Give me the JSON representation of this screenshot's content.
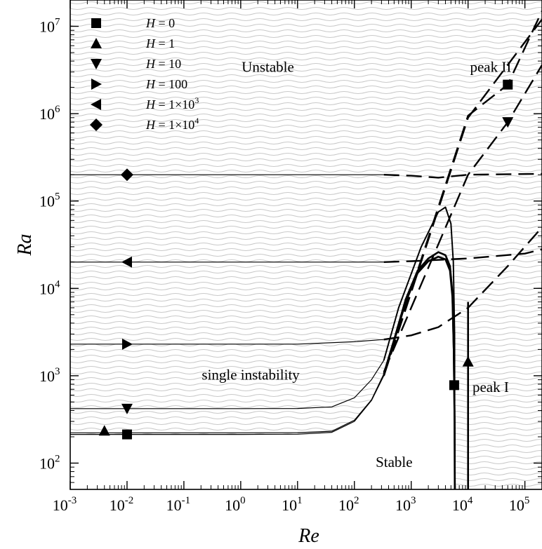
{
  "chart_data": {
    "type": "line",
    "x_scale": "log",
    "y_scale": "log",
    "xlabel": "Re",
    "ylabel": "Ra",
    "xlim": [
      0.001,
      200000
    ],
    "ylim": [
      50,
      20000000
    ],
    "x_ticks": [
      {
        "value": 0.001,
        "mant": "10",
        "exp": "-3"
      },
      {
        "value": 0.01,
        "mant": "10",
        "exp": "-2"
      },
      {
        "value": 0.1,
        "mant": "10",
        "exp": "-1"
      },
      {
        "value": 1,
        "mant": "10",
        "exp": "0"
      },
      {
        "value": 10,
        "mant": "10",
        "exp": "1"
      },
      {
        "value": 100,
        "mant": "10",
        "exp": "2"
      },
      {
        "value": 1000,
        "mant": "10",
        "exp": "3"
      },
      {
        "value": 10000,
        "mant": "10",
        "exp": "4"
      },
      {
        "value": 100000,
        "mant": "10",
        "exp": "5"
      }
    ],
    "y_ticks": [
      {
        "value": 100,
        "mant": "10",
        "exp": "2"
      },
      {
        "value": 1000,
        "mant": "10",
        "exp": "3"
      },
      {
        "value": 10000,
        "mant": "10",
        "exp": "4"
      },
      {
        "value": 100000,
        "mant": "10",
        "exp": "5"
      },
      {
        "value": 1000000,
        "mant": "10",
        "exp": "6"
      },
      {
        "value": 10000000,
        "mant": "10",
        "exp": "7"
      }
    ],
    "grid": false,
    "legend_position": "top-left",
    "annotations": [
      {
        "text": "Unstable",
        "x": 3.0,
        "y": 3000000
      },
      {
        "text": "peak II",
        "x": 25000,
        "y": 3000000
      },
      {
        "text": "single instability",
        "x": 1.5,
        "y": 900
      },
      {
        "text": "peak I",
        "x": 25000,
        "y": 650
      },
      {
        "text": "Stable",
        "x": 500,
        "y": 90
      }
    ],
    "series": [
      {
        "name": "H = 0",
        "marker": "square",
        "markers": [
          {
            "x": 0.01,
            "y": 213
          },
          {
            "x": 5700,
            "y": 780
          },
          {
            "x": 50000,
            "y": 2150000
          }
        ],
        "curves": [
          {
            "style": "solid",
            "width": 1.2,
            "points": [
              [
                0.001,
                213
              ],
              [
                1,
                213
              ],
              [
                10,
                214
              ],
              [
                40,
                225
              ],
              [
                100,
                300
              ],
              [
                200,
                520
              ],
              [
                330,
                1000
              ]
            ]
          },
          {
            "style": "solid",
            "width": 2.6,
            "points": [
              [
                330,
                1000
              ],
              [
                500,
                2500
              ],
              [
                800,
                7000
              ],
              [
                1300,
                15000
              ],
              [
                2000,
                20500
              ],
              [
                3000,
                23000
              ],
              [
                4000,
                21500
              ],
              [
                4800,
                16000
              ],
              [
                5300,
                8000
              ],
              [
                5600,
                2000
              ],
              [
                5800,
                300
              ],
              [
                5850,
                50
              ]
            ]
          },
          {
            "style": "dashed",
            "width": 2.4,
            "points": [
              [
                330,
                1000
              ],
              [
                1000,
                9500
              ],
              [
                10000,
                950000
              ],
              [
                50000,
                2150000
              ],
              [
                200000,
                15000000
              ]
            ]
          }
        ]
      },
      {
        "name": "H = 1",
        "marker": "triangle-up",
        "markers": [
          {
            "x": 0.004,
            "y": 235
          },
          {
            "x": 10000,
            "y": 1450
          }
        ],
        "curves": [
          {
            "style": "solid",
            "width": 1.2,
            "points": [
              [
                0.001,
                222
              ],
              [
                1,
                222
              ],
              [
                10,
                223
              ],
              [
                40,
                232
              ],
              [
                100,
                310
              ],
              [
                200,
                530
              ],
              [
                330,
                1050
              ]
            ]
          },
          {
            "style": "solid",
            "width": 2.6,
            "points": [
              [
                330,
                1050
              ],
              [
                500,
                2600
              ],
              [
                800,
                7500
              ],
              [
                1300,
                16000
              ],
              [
                2000,
                22000
              ],
              [
                3000,
                26000
              ],
              [
                4000,
                24000
              ],
              [
                4800,
                18000
              ],
              [
                5300,
                9000
              ],
              [
                5600,
                2000
              ],
              [
                5800,
                300
              ],
              [
                5850,
                50
              ]
            ]
          },
          {
            "style": "solid",
            "width": 2.6,
            "points": [
              [
                10000,
                50
              ],
              [
                10000,
                1450
              ],
              [
                10000,
                7000
              ]
            ]
          },
          {
            "style": "dashed",
            "width": 2.4,
            "points": [
              [
                330,
                1000
              ],
              [
                1000,
                9000
              ],
              [
                10000,
                900000
              ],
              [
                200000,
                12000000
              ]
            ]
          }
        ]
      },
      {
        "name": "H = 10",
        "marker": "triangle-down",
        "markers": [
          {
            "x": 0.01,
            "y": 420
          },
          {
            "x": 50000,
            "y": 800000
          }
        ],
        "curves": [
          {
            "style": "solid",
            "width": 1.2,
            "points": [
              [
                0.001,
                420
              ],
              [
                1,
                420
              ],
              [
                10,
                422
              ],
              [
                40,
                440
              ],
              [
                100,
                560
              ],
              [
                200,
                900
              ],
              [
                330,
                1500
              ]
            ]
          },
          {
            "style": "solid",
            "width": 2.0,
            "points": [
              [
                330,
                1500
              ],
              [
                600,
                6000
              ],
              [
                1500,
                30000
              ],
              [
                3000,
                75000
              ],
              [
                4000,
                85000
              ],
              [
                5000,
                55000
              ],
              [
                5500,
                20000
              ],
              [
                5800,
                3000
              ],
              [
                5850,
                50
              ]
            ]
          },
          {
            "style": "dashed",
            "width": 2.4,
            "points": [
              [
                330,
                1100
              ],
              [
                1000,
                6000
              ],
              [
                10000,
                200000
              ],
              [
                50000,
                800000
              ],
              [
                200000,
                3600000
              ]
            ]
          }
        ]
      },
      {
        "name": "H = 100",
        "marker": "triangle-right",
        "markers": [
          {
            "x": 0.01,
            "y": 2300
          }
        ],
        "curves": [
          {
            "style": "solid",
            "width": 1.2,
            "points": [
              [
                0.001,
                2300
              ],
              [
                10,
                2300
              ],
              [
                100,
                2450
              ],
              [
                330,
                2600
              ]
            ]
          },
          {
            "style": "dashed",
            "width": 2.4,
            "points": [
              [
                330,
                2600
              ],
              [
                1000,
                2900
              ],
              [
                3000,
                3600
              ],
              [
                10000,
                6000
              ],
              [
                50000,
                18000
              ],
              [
                200000,
                50000
              ]
            ]
          }
        ]
      },
      {
        "name": "H = 1×10³",
        "marker": "triangle-left",
        "markers": [
          {
            "x": 0.01,
            "y": 20000
          }
        ],
        "curves": [
          {
            "style": "solid",
            "width": 1.2,
            "points": [
              [
                0.001,
                20000
              ],
              [
                330,
                20000
              ]
            ]
          },
          {
            "style": "dashed",
            "width": 2.4,
            "points": [
              [
                330,
                20000
              ],
              [
                1000,
                20500
              ],
              [
                10000,
                22000
              ],
              [
                100000,
                25000
              ],
              [
                200000,
                28000
              ]
            ]
          }
        ]
      },
      {
        "name": "H = 1×10⁴",
        "marker": "diamond",
        "markers": [
          {
            "x": 0.01,
            "y": 200000
          }
        ],
        "curves": [
          {
            "style": "solid",
            "width": 1.2,
            "points": [
              [
                0.001,
                200000
              ],
              [
                330,
                200000
              ]
            ]
          },
          {
            "style": "dashed",
            "width": 2.4,
            "points": [
              [
                330,
                200000
              ],
              [
                1000,
                195000
              ],
              [
                3000,
                185000
              ],
              [
                10000,
                200000
              ],
              [
                200000,
                205000
              ]
            ]
          }
        ]
      }
    ]
  },
  "legend": [
    {
      "marker": "square",
      "label": "H = 0"
    },
    {
      "marker": "triangle-up",
      "label": "H = 1"
    },
    {
      "marker": "triangle-down",
      "label": "H = 10"
    },
    {
      "marker": "triangle-right",
      "label": "H = 100"
    },
    {
      "marker": "triangle-left",
      "label": "H = 1×10",
      "sup": "3"
    },
    {
      "marker": "diamond",
      "label": "H = 1×10",
      "sup": "4"
    }
  ]
}
